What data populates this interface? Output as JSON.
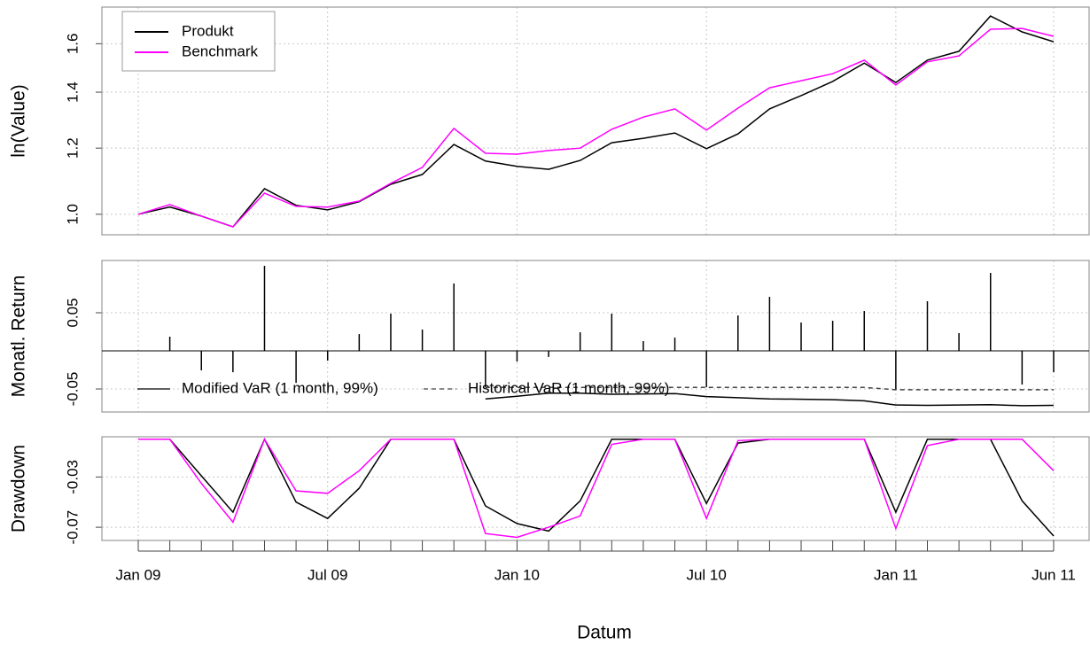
{
  "chart_data": [
    {
      "type": "line",
      "ylabel": "ln(Value)",
      "log_y": true,
      "ylim": [
        0.945,
        1.77
      ],
      "yticks": [
        {
          "value": 1,
          "label": "1.0"
        },
        1.2,
        1.4,
        1.6
      ],
      "grid": true,
      "legend": "top-left",
      "series": [
        {
          "name": "Produkt",
          "color": "#000000",
          "values": [
            1.0,
            1.02,
            0.995,
            0.966,
            1.073,
            1.025,
            1.012,
            1.035,
            1.086,
            1.116,
            1.212,
            1.158,
            1.141,
            1.132,
            1.16,
            1.218,
            1.233,
            1.251,
            1.198,
            1.248,
            1.337,
            1.387,
            1.442,
            1.517,
            1.438,
            1.529,
            1.567,
            1.727,
            1.653,
            1.609
          ]
        },
        {
          "name": "Benchmark",
          "color": "#ff00ff",
          "values": [
            1.0,
            1.027,
            0.995,
            0.966,
            1.06,
            1.022,
            1.02,
            1.037,
            1.089,
            1.138,
            1.267,
            1.183,
            1.18,
            1.192,
            1.2,
            1.264,
            1.307,
            1.337,
            1.261,
            1.34,
            1.417,
            1.445,
            1.473,
            1.529,
            1.428,
            1.522,
            1.547,
            1.665,
            1.669,
            1.633
          ]
        }
      ]
    },
    {
      "type": "bar",
      "ylabel": "Monatl. Return",
      "ylim": [
        -0.0802,
        0.1186
      ],
      "yticks": [
        -0.05,
        0.05
      ],
      "grid": true,
      "color": "#000000",
      "values": [
        null,
        0.0186,
        -0.0256,
        -0.028,
        0.1116,
        -0.042,
        -0.0128,
        0.022,
        0.0488,
        0.028,
        0.0884,
        -0.0477,
        -0.014,
        -0.008,
        0.0244,
        0.0488,
        0.0128,
        0.0174,
        -0.0477,
        0.0465,
        0.0709,
        0.0372,
        0.0395,
        0.0523,
        -0.0512,
        0.0651,
        0.0233,
        0.1023,
        -0.0442,
        -0.028
      ],
      "series": [
        {
          "name": "Modified VaR (1 month, 99%)",
          "color": "#000000",
          "style": "solid",
          "values": [
            null,
            null,
            null,
            null,
            null,
            null,
            null,
            null,
            null,
            null,
            null,
            -0.063,
            -0.0595,
            -0.0555,
            -0.0555,
            -0.057,
            -0.0565,
            -0.056,
            -0.06,
            -0.0615,
            -0.063,
            -0.0635,
            -0.064,
            -0.0655,
            -0.071,
            -0.0715,
            -0.071,
            -0.0705,
            -0.072,
            -0.0715
          ]
        },
        {
          "name": "Historical VaR (1 month, 99%)",
          "color": "#444444",
          "style": "dashed",
          "values": [
            null,
            null,
            null,
            null,
            null,
            null,
            null,
            null,
            null,
            null,
            null,
            -0.048,
            -0.048,
            -0.048,
            -0.048,
            -0.048,
            -0.048,
            -0.048,
            -0.048,
            -0.048,
            -0.048,
            -0.048,
            -0.048,
            -0.048,
            -0.051,
            -0.051,
            -0.051,
            -0.051,
            -0.051,
            -0.051
          ]
        }
      ]
    },
    {
      "type": "line",
      "ylabel": "Drawdown",
      "xlabel": "Datum",
      "ylim": [
        -0.0805,
        0.002
      ],
      "yticks": [
        -0.03,
        -0.07
      ],
      "grid": true,
      "categories": [
        "Jan 09",
        null,
        null,
        null,
        null,
        null,
        "Jul 09",
        null,
        null,
        null,
        null,
        null,
        "Jan 10",
        null,
        null,
        null,
        null,
        null,
        "Jul 10",
        null,
        null,
        null,
        null,
        null,
        "Jan 11",
        null,
        null,
        null,
        null,
        "Jun 11"
      ],
      "series": [
        {
          "color": "#000000",
          "values": [
            0,
            0,
            -0.029,
            -0.058,
            0,
            -0.05,
            -0.063,
            -0.039,
            0,
            0,
            0,
            -0.053,
            -0.067,
            -0.073,
            -0.049,
            0,
            0,
            0,
            -0.051,
            -0.003,
            0,
            0,
            0,
            0,
            -0.058,
            0,
            0,
            0,
            -0.049,
            -0.077
          ]
        },
        {
          "color": "#ff00ff",
          "values": [
            0,
            0,
            -0.035,
            -0.066,
            0,
            -0.041,
            -0.043,
            -0.025,
            0,
            0,
            0,
            -0.075,
            -0.078,
            -0.07,
            -0.061,
            -0.004,
            0,
            0,
            -0.063,
            -0.001,
            0,
            0,
            0,
            0,
            -0.071,
            -0.005,
            0,
            0,
            0,
            -0.025
          ]
        }
      ]
    }
  ]
}
